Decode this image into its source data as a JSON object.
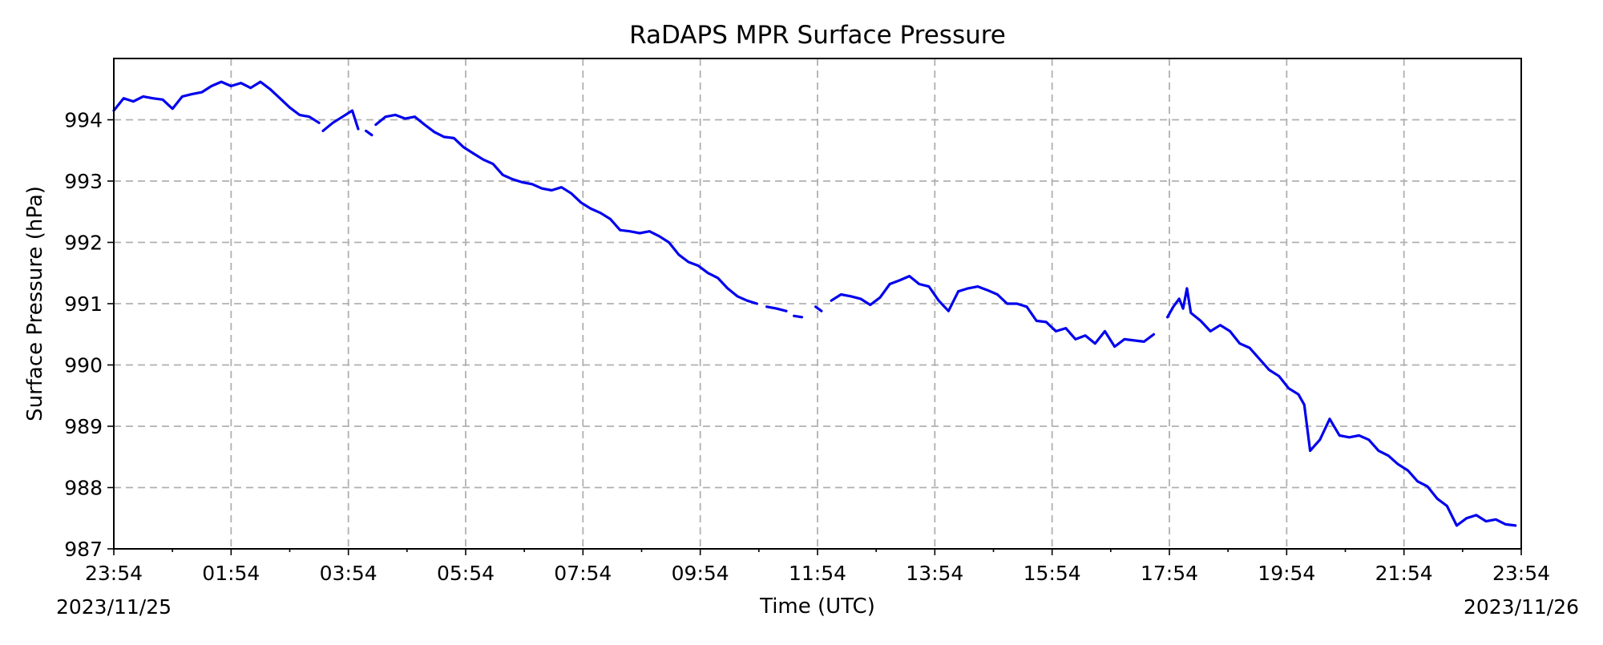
{
  "chart_data": {
    "type": "line",
    "title": "RaDAPS MPR Surface Pressure",
    "xlabel": "Time (UTC)",
    "ylabel": "Surface Pressure (hPa)",
    "x_range": [
      "2023-11-25 23:54",
      "2023-11-26 23:54"
    ],
    "ylim": [
      987,
      995
    ],
    "grid": true,
    "x_tick_labels": [
      "23:54",
      "01:54",
      "03:54",
      "05:54",
      "07:54",
      "09:54",
      "11:54",
      "13:54",
      "15:54",
      "17:54",
      "19:54",
      "21:54",
      "23:54"
    ],
    "x_tick_hours": [
      0,
      2,
      4,
      6,
      8,
      10,
      12,
      14,
      16,
      18,
      20,
      22,
      24
    ],
    "x_minor_tick_hours": [
      1,
      3,
      5,
      7,
      9,
      11,
      13,
      15,
      17,
      19,
      21,
      23
    ],
    "x_date_labels": {
      "left": "2023/11/25",
      "right": "2023/11/26"
    },
    "y_ticks": [
      987,
      988,
      989,
      990,
      991,
      992,
      993,
      994
    ],
    "y_tick_labels": [
      "987",
      "988",
      "989",
      "990",
      "991",
      "992",
      "993",
      "994"
    ],
    "colors": {
      "series": "#0000ee",
      "grid": "#b0b0b0",
      "axis": "#000000"
    },
    "series": [
      {
        "segments": [
          [
            [
              "2023-11-25 23:54",
              994.15
            ],
            [
              "2023-11-26 00:04",
              994.35
            ],
            [
              "2023-11-26 00:14",
              994.3
            ],
            [
              "2023-11-26 00:24",
              994.38
            ],
            [
              "2023-11-26 00:34",
              994.35
            ],
            [
              "2023-11-26 00:44",
              994.33
            ],
            [
              "2023-11-26 00:54",
              994.18
            ],
            [
              "2023-11-26 01:04",
              994.38
            ],
            [
              "2023-11-26 01:14",
              994.42
            ],
            [
              "2023-11-26 01:24",
              994.45
            ],
            [
              "2023-11-26 01:34",
              994.55
            ],
            [
              "2023-11-26 01:44",
              994.62
            ],
            [
              "2023-11-26 01:54",
              994.55
            ],
            [
              "2023-11-26 02:04",
              994.6
            ],
            [
              "2023-11-26 02:14",
              994.52
            ],
            [
              "2023-11-26 02:24",
              994.62
            ],
            [
              "2023-11-26 02:34",
              994.5
            ],
            [
              "2023-11-26 02:44",
              994.35
            ],
            [
              "2023-11-26 02:54",
              994.2
            ],
            [
              "2023-11-26 03:04",
              994.08
            ],
            [
              "2023-11-26 03:14",
              994.05
            ],
            [
              "2023-11-26 03:24",
              993.95
            ]
          ],
          [
            [
              "2023-11-26 03:28",
              993.82
            ],
            [
              "2023-11-26 03:38",
              993.95
            ],
            [
              "2023-11-26 03:48",
              994.05
            ],
            [
              "2023-11-26 03:58",
              994.15
            ],
            [
              "2023-11-26 04:04",
              993.85
            ]
          ],
          [
            [
              "2023-11-26 04:12",
              993.82
            ],
            [
              "2023-11-26 04:18",
              993.75
            ]
          ],
          [
            [
              "2023-11-26 04:22",
              993.92
            ],
            [
              "2023-11-26 04:32",
              994.05
            ],
            [
              "2023-11-26 04:42",
              994.08
            ],
            [
              "2023-11-26 04:52",
              994.02
            ],
            [
              "2023-11-26 05:02",
              994.05
            ],
            [
              "2023-11-26 05:12",
              993.92
            ],
            [
              "2023-11-26 05:22",
              993.8
            ],
            [
              "2023-11-26 05:32",
              993.72
            ],
            [
              "2023-11-26 05:42",
              993.7
            ],
            [
              "2023-11-26 05:52",
              993.55
            ],
            [
              "2023-11-26 06:02",
              993.45
            ],
            [
              "2023-11-26 06:12",
              993.35
            ],
            [
              "2023-11-26 06:22",
              993.28
            ],
            [
              "2023-11-26 06:32",
              993.1
            ],
            [
              "2023-11-26 06:42",
              993.03
            ],
            [
              "2023-11-26 06:52",
              992.98
            ],
            [
              "2023-11-26 07:02",
              992.95
            ],
            [
              "2023-11-26 07:12",
              992.88
            ],
            [
              "2023-11-26 07:22",
              992.85
            ],
            [
              "2023-11-26 07:32",
              992.9
            ],
            [
              "2023-11-26 07:42",
              992.8
            ],
            [
              "2023-11-26 07:52",
              992.65
            ],
            [
              "2023-11-26 08:02",
              992.55
            ],
            [
              "2023-11-26 08:12",
              992.48
            ],
            [
              "2023-11-26 08:22",
              992.38
            ],
            [
              "2023-11-26 08:32",
              992.2
            ],
            [
              "2023-11-26 08:42",
              992.18
            ],
            [
              "2023-11-26 08:52",
              992.15
            ],
            [
              "2023-11-26 09:02",
              992.18
            ],
            [
              "2023-11-26 09:12",
              992.1
            ],
            [
              "2023-11-26 09:22",
              992.0
            ],
            [
              "2023-11-26 09:32",
              991.8
            ],
            [
              "2023-11-26 09:42",
              991.68
            ],
            [
              "2023-11-26 09:52",
              991.62
            ],
            [
              "2023-11-26 10:02",
              991.5
            ],
            [
              "2023-11-26 10:12",
              991.42
            ],
            [
              "2023-11-26 10:22",
              991.25
            ],
            [
              "2023-11-26 10:32",
              991.12
            ],
            [
              "2023-11-26 10:42",
              991.05
            ],
            [
              "2023-11-26 10:52",
              991.0
            ]
          ],
          [
            [
              "2023-11-26 11:02",
              990.95
            ],
            [
              "2023-11-26 11:12",
              990.92
            ],
            [
              "2023-11-26 11:22",
              990.88
            ]
          ],
          [
            [
              "2023-11-26 11:30",
              990.8
            ],
            [
              "2023-11-26 11:38",
              990.78
            ]
          ],
          [
            [
              "2023-11-26 11:52",
              990.95
            ],
            [
              "2023-11-26 11:58",
              990.88
            ]
          ],
          [
            [
              "2023-11-26 12:08",
              991.05
            ],
            [
              "2023-11-26 12:18",
              991.15
            ],
            [
              "2023-11-26 12:28",
              991.12
            ],
            [
              "2023-11-26 12:38",
              991.08
            ],
            [
              "2023-11-26 12:48",
              990.98
            ],
            [
              "2023-11-26 12:58",
              991.1
            ],
            [
              "2023-11-26 13:08",
              991.32
            ],
            [
              "2023-11-26 13:18",
              991.38
            ],
            [
              "2023-11-26 13:28",
              991.45
            ],
            [
              "2023-11-26 13:38",
              991.32
            ],
            [
              "2023-11-26 13:48",
              991.28
            ],
            [
              "2023-11-26 13:58",
              991.05
            ],
            [
              "2023-11-26 14:08",
              990.88
            ],
            [
              "2023-11-26 14:18",
              991.2
            ],
            [
              "2023-11-26 14:28",
              991.25
            ],
            [
              "2023-11-26 14:38",
              991.28
            ],
            [
              "2023-11-26 14:48",
              991.22
            ],
            [
              "2023-11-26 14:58",
              991.15
            ],
            [
              "2023-11-26 15:08",
              991.0
            ],
            [
              "2023-11-26 15:18",
              991.0
            ],
            [
              "2023-11-26 15:28",
              990.95
            ],
            [
              "2023-11-26 15:38",
              990.72
            ],
            [
              "2023-11-26 15:48",
              990.7
            ],
            [
              "2023-11-26 15:58",
              990.55
            ],
            [
              "2023-11-26 16:08",
              990.6
            ],
            [
              "2023-11-26 16:18",
              990.42
            ],
            [
              "2023-11-26 16:28",
              990.48
            ],
            [
              "2023-11-26 16:38",
              990.35
            ],
            [
              "2023-11-26 16:48",
              990.55
            ],
            [
              "2023-11-26 16:58",
              990.3
            ],
            [
              "2023-11-26 17:08",
              990.42
            ],
            [
              "2023-11-26 17:18",
              990.4
            ],
            [
              "2023-11-26 17:28",
              990.38
            ],
            [
              "2023-11-26 17:38",
              990.5
            ]
          ],
          [
            [
              "2023-11-26 17:52",
              990.78
            ],
            [
              "2023-11-26 17:58",
              990.95
            ],
            [
              "2023-11-26 18:04",
              991.08
            ],
            [
              "2023-11-26 18:08",
              990.92
            ],
            [
              "2023-11-26 18:12",
              991.25
            ],
            [
              "2023-11-26 18:16",
              990.85
            ],
            [
              "2023-11-26 18:26",
              990.72
            ],
            [
              "2023-11-26 18:36",
              990.55
            ],
            [
              "2023-11-26 18:46",
              990.65
            ],
            [
              "2023-11-26 18:56",
              990.55
            ],
            [
              "2023-11-26 19:06",
              990.35
            ],
            [
              "2023-11-26 19:16",
              990.28
            ],
            [
              "2023-11-26 19:26",
              990.1
            ],
            [
              "2023-11-26 19:36",
              989.92
            ],
            [
              "2023-11-26 19:46",
              989.82
            ],
            [
              "2023-11-26 19:56",
              989.62
            ],
            [
              "2023-11-26 20:06",
              989.52
            ],
            [
              "2023-11-26 20:12",
              989.35
            ],
            [
              "2023-11-26 20:18",
              988.6
            ],
            [
              "2023-11-26 20:28",
              988.78
            ],
            [
              "2023-11-26 20:38",
              989.12
            ],
            [
              "2023-11-26 20:48",
              988.85
            ],
            [
              "2023-11-26 20:58",
              988.82
            ],
            [
              "2023-11-26 21:08",
              988.85
            ],
            [
              "2023-11-26 21:18",
              988.78
            ],
            [
              "2023-11-26 21:28",
              988.6
            ],
            [
              "2023-11-26 21:38",
              988.52
            ],
            [
              "2023-11-26 21:48",
              988.38
            ],
            [
              "2023-11-26 21:58",
              988.28
            ],
            [
              "2023-11-26 22:08",
              988.1
            ],
            [
              "2023-11-26 22:18",
              988.02
            ],
            [
              "2023-11-26 22:28",
              987.82
            ],
            [
              "2023-11-26 22:38",
              987.7
            ],
            [
              "2023-11-26 22:48",
              987.38
            ],
            [
              "2023-11-26 22:58",
              987.5
            ],
            [
              "2023-11-26 23:08",
              987.55
            ],
            [
              "2023-11-26 23:18",
              987.45
            ],
            [
              "2023-11-26 23:28",
              987.48
            ],
            [
              "2023-11-26 23:38",
              987.4
            ],
            [
              "2023-11-26 23:48",
              987.38
            ]
          ]
        ]
      }
    ]
  }
}
